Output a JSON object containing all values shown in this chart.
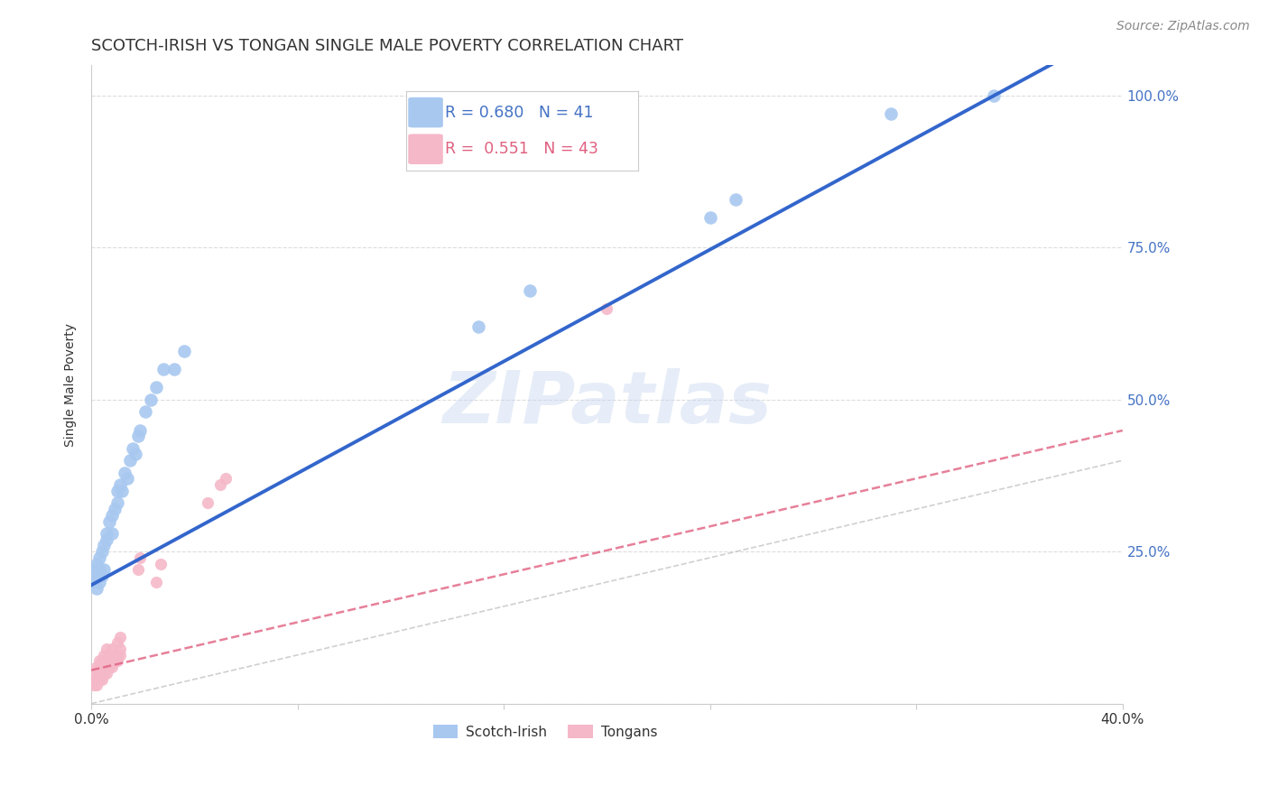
{
  "title": "SCOTCH-IRISH VS TONGAN SINGLE MALE POVERTY CORRELATION CHART",
  "source": "Source: ZipAtlas.com",
  "ylabel": "Single Male Poverty",
  "xlim": [
    0.0,
    0.4
  ],
  "ylim": [
    0.0,
    1.05
  ],
  "xticks": [
    0.0,
    0.08,
    0.16,
    0.24,
    0.32,
    0.4
  ],
  "xtick_labels": [
    "0.0%",
    "",
    "",
    "",
    "",
    "40.0%"
  ],
  "yticks": [
    0.0,
    0.25,
    0.5,
    0.75,
    1.0
  ],
  "ytick_labels": [
    "",
    "25.0%",
    "50.0%",
    "75.0%",
    "100.0%"
  ],
  "watermark": "ZIPatlas",
  "legend_blue_r": "R = 0.680",
  "legend_blue_n": "N = 41",
  "legend_pink_r": "R =  0.551",
  "legend_pink_n": "N = 43",
  "blue_color": "#A8C8F0",
  "pink_color": "#F5B8C8",
  "line_blue": "#3366CC",
  "line_pink": "#E06080",
  "line_ref": "#C0C0C0",
  "scotch_irish_x": [
    0.001,
    0.001,
    0.002,
    0.002,
    0.002,
    0.003,
    0.003,
    0.003,
    0.004,
    0.004,
    0.005,
    0.005,
    0.006,
    0.006,
    0.007,
    0.008,
    0.008,
    0.009,
    0.01,
    0.01,
    0.011,
    0.012,
    0.013,
    0.014,
    0.015,
    0.016,
    0.017,
    0.018,
    0.019,
    0.021,
    0.023,
    0.025,
    0.028,
    0.032,
    0.036,
    0.15,
    0.17,
    0.24,
    0.25,
    0.31,
    0.35
  ],
  "scotch_irish_y": [
    0.2,
    0.22,
    0.19,
    0.21,
    0.23,
    0.2,
    0.22,
    0.24,
    0.21,
    0.25,
    0.22,
    0.26,
    0.27,
    0.28,
    0.3,
    0.28,
    0.31,
    0.32,
    0.33,
    0.35,
    0.36,
    0.35,
    0.38,
    0.37,
    0.4,
    0.42,
    0.41,
    0.44,
    0.45,
    0.48,
    0.5,
    0.52,
    0.55,
    0.55,
    0.58,
    0.62,
    0.68,
    0.8,
    0.83,
    0.97,
    1.0
  ],
  "tongan_x": [
    0.001,
    0.001,
    0.001,
    0.002,
    0.002,
    0.002,
    0.003,
    0.003,
    0.003,
    0.003,
    0.004,
    0.004,
    0.004,
    0.005,
    0.005,
    0.005,
    0.005,
    0.006,
    0.006,
    0.006,
    0.006,
    0.007,
    0.007,
    0.007,
    0.008,
    0.008,
    0.008,
    0.009,
    0.009,
    0.01,
    0.01,
    0.01,
    0.011,
    0.011,
    0.011,
    0.018,
    0.019,
    0.025,
    0.027,
    0.045,
    0.05,
    0.052,
    0.2
  ],
  "tongan_y": [
    0.03,
    0.04,
    0.05,
    0.03,
    0.04,
    0.06,
    0.04,
    0.05,
    0.06,
    0.07,
    0.04,
    0.05,
    0.07,
    0.05,
    0.06,
    0.07,
    0.08,
    0.05,
    0.06,
    0.07,
    0.09,
    0.06,
    0.07,
    0.08,
    0.06,
    0.07,
    0.09,
    0.07,
    0.08,
    0.07,
    0.08,
    0.1,
    0.08,
    0.09,
    0.11,
    0.22,
    0.24,
    0.2,
    0.23,
    0.33,
    0.36,
    0.37,
    0.65
  ],
  "background_color": "#FFFFFF",
  "grid_color": "#DDDDDD",
  "title_fontsize": 13,
  "axis_label_fontsize": 10,
  "tick_fontsize": 11,
  "source_fontsize": 10
}
